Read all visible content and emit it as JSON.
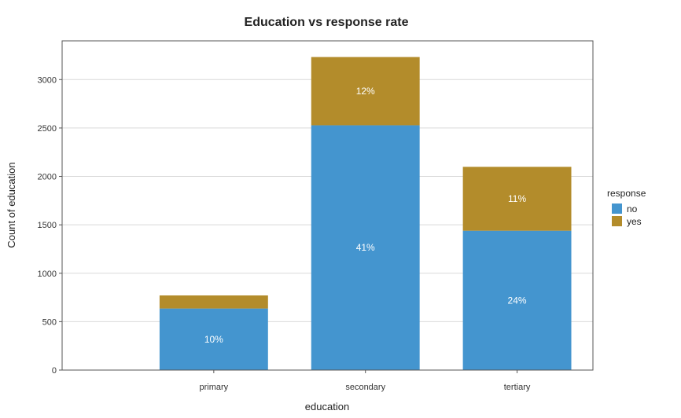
{
  "chart_data": {
    "type": "bar",
    "stacked": true,
    "title": "Education vs response rate",
    "xlabel": "education",
    "ylabel": "Count of education",
    "categories": [
      "primary",
      "secondary",
      "tertiary"
    ],
    "series": [
      {
        "name": "no",
        "color": "#4495CF",
        "values": [
          636,
          2528,
          1439
        ],
        "labels": [
          "10%",
          "41%",
          "24%"
        ]
      },
      {
        "name": "yes",
        "color": "#B38C2B",
        "values": [
          135,
          705,
          660
        ],
        "labels": [
          "",
          "12%",
          "11%"
        ]
      }
    ],
    "yticks": [
      0,
      500,
      1000,
      1500,
      2000,
      2500,
      3000
    ],
    "ylim": [
      0,
      3400
    ],
    "grid": true,
    "legend": {
      "title": "response",
      "position": "right"
    }
  }
}
